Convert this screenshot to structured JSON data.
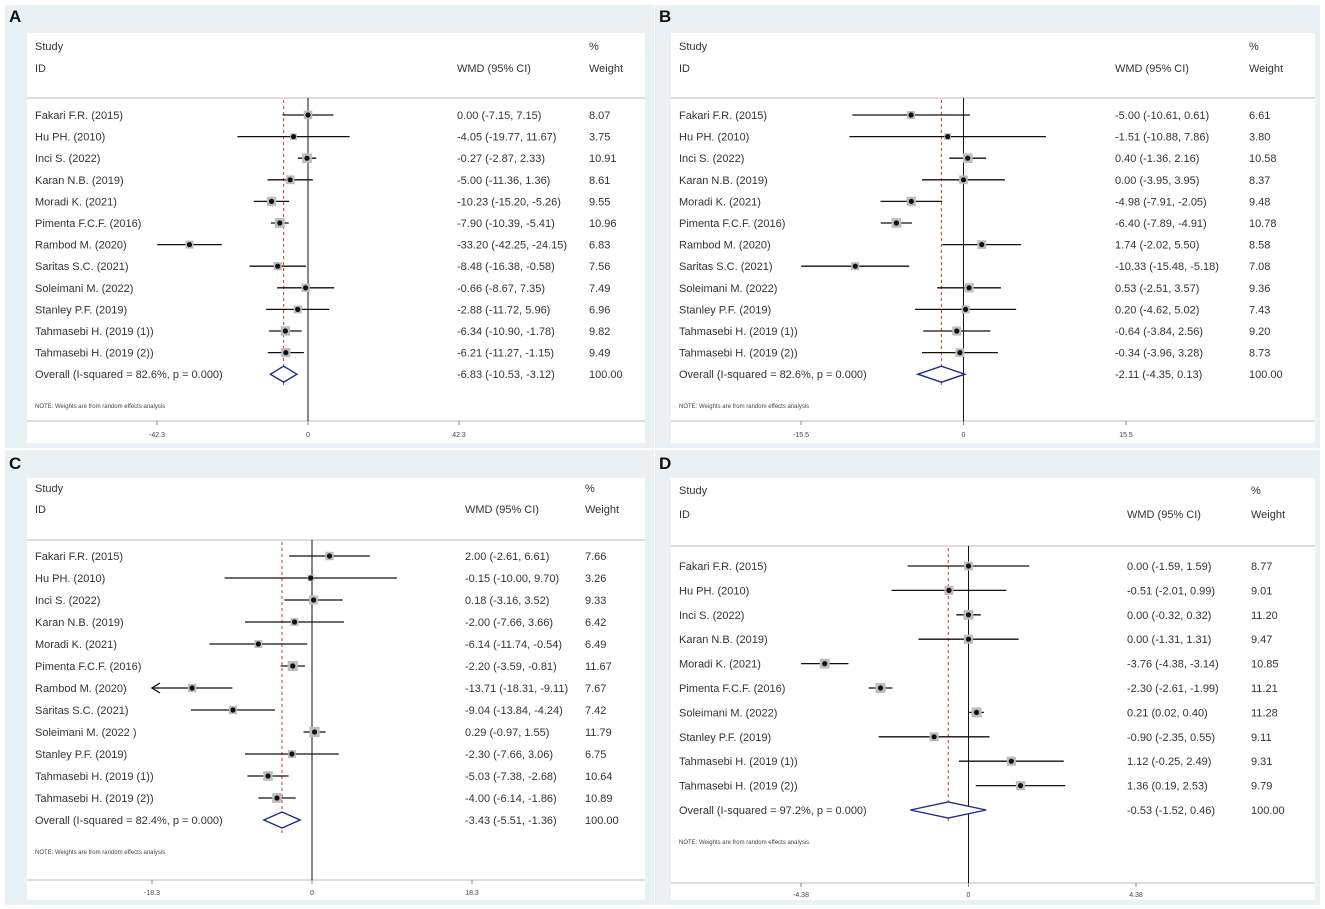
{
  "chart_data": [
    {
      "type": "forest",
      "panel_label": "A",
      "header": {
        "study": "Study",
        "id": "ID",
        "effect": "WMD (95% CI)",
        "percent": "%",
        "weight": "Weight"
      },
      "studies": [
        {
          "label": "Fakari F.R. (2015)",
          "est": 0.0,
          "lo": -7.15,
          "hi": 7.15,
          "text": "0.00 (-7.15, 7.15)",
          "weight": "8.07"
        },
        {
          "label": "Hu PH. (2010)",
          "est": -4.05,
          "lo": -19.77,
          "hi": 11.67,
          "text": "-4.05 (-19.77, 11.67)",
          "weight": "3.75"
        },
        {
          "label": "Inci S. (2022)",
          "est": -0.27,
          "lo": -2.87,
          "hi": 2.33,
          "text": "-0.27 (-2.87, 2.33)",
          "weight": "10.91"
        },
        {
          "label": "Karan N.B. (2019)",
          "est": -5.0,
          "lo": -11.36,
          "hi": 1.36,
          "text": "-5.00 (-11.36, 1.36)",
          "weight": "8.61"
        },
        {
          "label": "Moradi K. (2021)",
          "est": -10.23,
          "lo": -15.2,
          "hi": -5.26,
          "text": "-10.23 (-15.20, -5.26)",
          "weight": "9.55"
        },
        {
          "label": "Pimenta F.C.F. (2016)",
          "est": -7.9,
          "lo": -10.39,
          "hi": -5.41,
          "text": "-7.90 (-10.39, -5.41)",
          "weight": "10.96"
        },
        {
          "label": "Rambod M. (2020)",
          "est": -33.2,
          "lo": -42.25,
          "hi": -24.15,
          "text": "-33.20 (-42.25, -24.15)",
          "weight": "6.83"
        },
        {
          "label": "Saritas S.C. (2021)",
          "est": -8.48,
          "lo": -16.38,
          "hi": -0.58,
          "text": "-8.48 (-16.38, -0.58)",
          "weight": "7.56"
        },
        {
          "label": "Soleimani M. (2022)",
          "est": -0.66,
          "lo": -8.67,
          "hi": 7.35,
          "text": "-0.66 (-8.67, 7.35)",
          "weight": "7.49"
        },
        {
          "label": "Stanley P.F. (2019)",
          "est": -2.88,
          "lo": -11.72,
          "hi": 5.96,
          "text": "-2.88 (-11.72, 5.96)",
          "weight": "6.96"
        },
        {
          "label": "Tahmasebi H. (2019 (1))",
          "est": -6.34,
          "lo": -10.9,
          "hi": -1.78,
          "text": "-6.34 (-10.90, -1.78)",
          "weight": "9.82"
        },
        {
          "label": "Tahmasebi H. (2019 (2))",
          "est": -6.21,
          "lo": -11.27,
          "hi": -1.15,
          "text": "-6.21 (-11.27, -1.15)",
          "weight": "9.49"
        }
      ],
      "overall": {
        "label": "Overall  (I-squared = 82.6%, p = 0.000)",
        "est": -6.83,
        "lo": -10.53,
        "hi": -3.12,
        "text": "-6.83 (-10.53, -3.12)",
        "weight": "100.00"
      },
      "note": "NOTE: Weights are from random effects analysis",
      "axis": {
        "min": -42.3,
        "max": 42.3,
        "ticks": [
          "-42.3",
          "0",
          "42.3"
        ]
      }
    },
    {
      "type": "forest",
      "panel_label": "B",
      "header": {
        "study": "Study",
        "id": "ID",
        "effect": "WMD (95% CI)",
        "percent": "%",
        "weight": "Weight"
      },
      "studies": [
        {
          "label": "Fakari F.R. (2015)",
          "est": -5.0,
          "lo": -10.61,
          "hi": 0.61,
          "text": "-5.00 (-10.61, 0.61)",
          "weight": "6.61"
        },
        {
          "label": "Hu PH. (2010)",
          "est": -1.51,
          "lo": -10.88,
          "hi": 7.86,
          "text": "-1.51 (-10.88, 7.86)",
          "weight": "3.80"
        },
        {
          "label": "Inci S. (2022)",
          "est": 0.4,
          "lo": -1.36,
          "hi": 2.16,
          "text": "0.40 (-1.36, 2.16)",
          "weight": "10.58"
        },
        {
          "label": "Karan N.B. (2019)",
          "est": 0.0,
          "lo": -3.95,
          "hi": 3.95,
          "text": "0.00 (-3.95, 3.95)",
          "weight": "8.37"
        },
        {
          "label": "Moradi K. (2021)",
          "est": -4.98,
          "lo": -7.91,
          "hi": -2.05,
          "text": "-4.98 (-7.91, -2.05)",
          "weight": "9.48"
        },
        {
          "label": "Pimenta F.C.F. (2016)",
          "est": -6.4,
          "lo": -7.89,
          "hi": -4.91,
          "text": "-6.40 (-7.89, -4.91)",
          "weight": "10.78"
        },
        {
          "label": "Rambod M. (2020)",
          "est": 1.74,
          "lo": -2.02,
          "hi": 5.5,
          "text": "1.74 (-2.02, 5.50)",
          "weight": "8.58"
        },
        {
          "label": "Saritas S.C. (2021)",
          "est": -10.33,
          "lo": -15.48,
          "hi": -5.18,
          "text": "-10.33 (-15.48, -5.18)",
          "weight": "7.08"
        },
        {
          "label": "Soleimani M. (2022)",
          "est": 0.53,
          "lo": -2.51,
          "hi": 3.57,
          "text": "0.53 (-2.51, 3.57)",
          "weight": "9.36"
        },
        {
          "label": "Stanley P.F. (2019)",
          "est": 0.2,
          "lo": -4.62,
          "hi": 5.02,
          "text": "0.20 (-4.62, 5.02)",
          "weight": "7.43"
        },
        {
          "label": "Tahmasebi H. (2019 (1))",
          "est": -0.64,
          "lo": -3.84,
          "hi": 2.56,
          "text": "-0.64 (-3.84, 2.56)",
          "weight": "9.20"
        },
        {
          "label": "Tahmasebi H. (2019 (2))",
          "est": -0.34,
          "lo": -3.96,
          "hi": 3.28,
          "text": "-0.34 (-3.96, 3.28)",
          "weight": "8.73"
        }
      ],
      "overall": {
        "label": "Overall  (I-squared = 82.6%, p = 0.000)",
        "est": -2.11,
        "lo": -4.35,
        "hi": 0.13,
        "text": "-2.11 (-4.35, 0.13)",
        "weight": "100.00"
      },
      "note": "NOTE: Weights are from random effects analysis",
      "axis": {
        "min": -15.5,
        "max": 15.5,
        "ticks": [
          "-15.5",
          "0",
          "15.5"
        ]
      }
    },
    {
      "type": "forest",
      "panel_label": "C",
      "header": {
        "study": "Study",
        "id": "ID",
        "effect": "WMD (95% CI)",
        "percent": "%",
        "weight": "Weight"
      },
      "studies": [
        {
          "label": "Fakari F.R. (2015)",
          "est": 2.0,
          "lo": -2.61,
          "hi": 6.61,
          "text": "2.00 (-2.61, 6.61)",
          "weight": "7.66"
        },
        {
          "label": "Hu PH. (2010)",
          "est": -0.15,
          "lo": -10.0,
          "hi": 9.7,
          "text": "-0.15 (-10.00, 9.70)",
          "weight": "3.26"
        },
        {
          "label": "Inci S. (2022)",
          "est": 0.18,
          "lo": -3.16,
          "hi": 3.52,
          "text": "0.18 (-3.16, 3.52)",
          "weight": "9.33"
        },
        {
          "label": "Karan N.B. (2019)",
          "est": -2.0,
          "lo": -7.66,
          "hi": 3.66,
          "text": "-2.00 (-7.66, 3.66)",
          "weight": "6.42"
        },
        {
          "label": "Moradi K. (2021)",
          "est": -6.14,
          "lo": -11.74,
          "hi": -0.54,
          "text": "-6.14 (-11.74, -0.54)",
          "weight": "6.49"
        },
        {
          "label": "Pimenta F.C.F. (2016)",
          "est": -2.2,
          "lo": -3.59,
          "hi": -0.81,
          "text": "-2.20 (-3.59, -0.81)",
          "weight": "11.67"
        },
        {
          "label": "Rambod M. (2020)",
          "est": -13.71,
          "lo": -18.31,
          "hi": -9.11,
          "text": "-13.71 (-18.31, -9.11)",
          "weight": "7.67"
        },
        {
          "label": "Saritas S.C. (2021)",
          "est": -9.04,
          "lo": -13.84,
          "hi": -4.24,
          "text": "-9.04 (-13.84, -4.24)",
          "weight": "7.42"
        },
        {
          "label": "Soleimani M. (2022 )",
          "est": 0.29,
          "lo": -0.97,
          "hi": 1.55,
          "text": "0.29 (-0.97, 1.55)",
          "weight": "11.79"
        },
        {
          "label": "Stanley P.F. (2019)",
          "est": -2.3,
          "lo": -7.66,
          "hi": 3.06,
          "text": "-2.30 (-7.66, 3.06)",
          "weight": "6.75"
        },
        {
          "label": "Tahmasebi H. (2019 (1))",
          "est": -5.03,
          "lo": -7.38,
          "hi": -2.68,
          "text": "-5.03 (-7.38, -2.68)",
          "weight": "10.64"
        },
        {
          "label": "Tahmasebi H. (2019 (2))",
          "est": -4.0,
          "lo": -6.14,
          "hi": -1.86,
          "text": "-4.00 (-6.14, -1.86)",
          "weight": "10.89"
        }
      ],
      "overall": {
        "label": "Overall  (I-squared = 82.4%, p = 0.000)",
        "est": -3.43,
        "lo": -5.51,
        "hi": -1.36,
        "text": "-3.43 (-5.51, -1.36)",
        "weight": "100.00"
      },
      "note": "NOTE: Weights are from random effects analysis",
      "axis": {
        "min": -18.3,
        "max": 18.3,
        "ticks": [
          "-18.3",
          "0",
          "18.3"
        ]
      }
    },
    {
      "type": "forest",
      "panel_label": "D",
      "header": {
        "study": "Study",
        "id": "ID",
        "effect": "WMD (95% CI)",
        "percent": "%",
        "weight": "Weight"
      },
      "studies": [
        {
          "label": "Fakari F.R. (2015)",
          "est": 0.0,
          "lo": -1.59,
          "hi": 1.59,
          "text": "0.00 (-1.59, 1.59)",
          "weight": "8.77"
        },
        {
          "label": "Hu PH. (2010)",
          "est": -0.51,
          "lo": -2.01,
          "hi": 0.99,
          "text": "-0.51 (-2.01, 0.99)",
          "weight": "9.01"
        },
        {
          "label": "Inci S. (2022)",
          "est": 0.0,
          "lo": -0.32,
          "hi": 0.32,
          "text": "0.00 (-0.32, 0.32)",
          "weight": "11.20"
        },
        {
          "label": "Karan N.B. (2019)",
          "est": 0.0,
          "lo": -1.31,
          "hi": 1.31,
          "text": "0.00 (-1.31, 1.31)",
          "weight": "9.47"
        },
        {
          "label": "Moradi K. (2021)",
          "est": -3.76,
          "lo": -4.38,
          "hi": -3.14,
          "text": "-3.76 (-4.38, -3.14)",
          "weight": "10.85"
        },
        {
          "label": "Pimenta F.C.F. (2016)",
          "est": -2.3,
          "lo": -2.61,
          "hi": -1.99,
          "text": "-2.30 (-2.61, -1.99)",
          "weight": "11.21"
        },
        {
          "label": "Soleimani M. (2022)",
          "est": 0.21,
          "lo": 0.02,
          "hi": 0.4,
          "text": "0.21 (0.02, 0.40)",
          "weight": "11.28"
        },
        {
          "label": "Stanley P.F. (2019)",
          "est": -0.9,
          "lo": -2.35,
          "hi": 0.55,
          "text": "-0.90 (-2.35, 0.55)",
          "weight": "9.11"
        },
        {
          "label": "Tahmasebi H. (2019 (1))",
          "est": 1.12,
          "lo": -0.25,
          "hi": 2.49,
          "text": "1.12 (-0.25, 2.49)",
          "weight": "9.31"
        },
        {
          "label": "Tahmasebi H. (2019 (2))",
          "est": 1.36,
          "lo": 0.19,
          "hi": 2.53,
          "text": "1.36 (0.19, 2.53)",
          "weight": "9.79"
        }
      ],
      "overall": {
        "label": "Overall  (I-squared = 97.2%, p = 0.000)",
        "est": -0.53,
        "lo": -1.52,
        "hi": 0.46,
        "text": "-0.53 (-1.52, 0.46)",
        "weight": "100.00"
      },
      "note": "NOTE: Weights are from random effects analysis",
      "axis": {
        "min": -4.38,
        "max": 4.38,
        "ticks": [
          "-4.38",
          "0",
          "4.38"
        ]
      }
    }
  ]
}
